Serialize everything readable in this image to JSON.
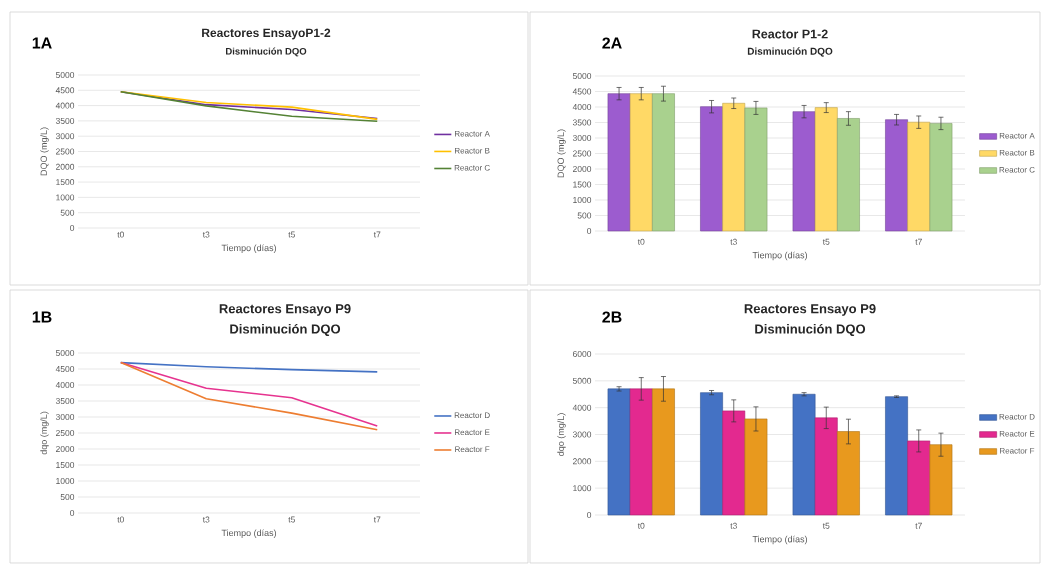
{
  "chart_data": [
    {
      "type": "line",
      "title": "Reactores EnsayoP1-2",
      "subtitle": "Disminución DQO",
      "annotations": [
        "1A"
      ],
      "xlabel": "Tiempo (días)",
      "ylabel": "DQO (mg/L)",
      "categories": [
        "t0",
        "t3",
        "t5",
        "t7"
      ],
      "ylim": [
        0,
        5000
      ],
      "yticks": [
        0,
        500,
        1000,
        1500,
        2000,
        2500,
        3000,
        3500,
        4000,
        4500,
        5000
      ],
      "grid": "y",
      "legend": "right",
      "series": [
        {
          "name": "Reactor A",
          "color": "#7030a0",
          "values": [
            4450,
            4030,
            3870,
            3580
          ]
        },
        {
          "name": "Reactor B",
          "color": "#ffc000",
          "values": [
            4450,
            4100,
            3950,
            3550
          ]
        },
        {
          "name": "Reactor C",
          "color": "#548235",
          "values": [
            4450,
            3990,
            3650,
            3490
          ]
        }
      ]
    },
    {
      "type": "bar",
      "title": "Reactor P1-2",
      "subtitle": "Disminución DQO",
      "annotations": [
        "2A"
      ],
      "xlabel": "Tiempo (días)",
      "ylabel": "DQO (mg/L)",
      "categories": [
        "t0",
        "t3",
        "t5",
        "t7"
      ],
      "ylim": [
        0,
        5000
      ],
      "yticks": [
        0,
        500,
        1000,
        1500,
        2000,
        2500,
        3000,
        3500,
        4000,
        4500,
        5000
      ],
      "grid": "y",
      "legend": "right",
      "series": [
        {
          "name": "Reactor A",
          "color": "#9c5ccf",
          "values": [
            4430,
            4010,
            3850,
            3590
          ],
          "errors": [
            200,
            200,
            200,
            170
          ]
        },
        {
          "name": "Reactor B",
          "color": "#ffd966",
          "values": [
            4430,
            4120,
            3980,
            3510
          ],
          "errors": [
            200,
            170,
            160,
            200
          ]
        },
        {
          "name": "Reactor C",
          "color": "#a9d18e",
          "values": [
            4430,
            3970,
            3630,
            3470
          ],
          "errors": [
            240,
            210,
            220,
            200
          ]
        }
      ]
    },
    {
      "type": "line",
      "title": "Reactores Ensayo P9",
      "subtitle": "Disminución DQO",
      "annotations": [
        "1B"
      ],
      "xlabel": "Tiempo (días)",
      "ylabel": "dqo (mg/L)",
      "categories": [
        "t0",
        "t3",
        "t5",
        "t7"
      ],
      "ylim": [
        0,
        5000
      ],
      "yticks": [
        0,
        500,
        1000,
        1500,
        2000,
        2500,
        3000,
        3500,
        4000,
        4500,
        5000
      ],
      "grid": "y",
      "legend": "right",
      "series": [
        {
          "name": "Reactor D",
          "color": "#4472c4",
          "values": [
            4700,
            4570,
            4480,
            4410
          ]
        },
        {
          "name": "Reactor E",
          "color": "#e6338f",
          "values": [
            4700,
            3900,
            3600,
            2720
          ]
        },
        {
          "name": "Reactor F",
          "color": "#ed7d31",
          "values": [
            4700,
            3570,
            3120,
            2600
          ]
        }
      ]
    },
    {
      "type": "bar",
      "title": "Reactores Ensayo P9",
      "subtitle": "Disminución DQO",
      "annotations": [
        "2B"
      ],
      "xlabel": "Tiempo (días)",
      "ylabel": "dqo (mg/L)",
      "categories": [
        "t0",
        "t3",
        "t5",
        "t7"
      ],
      "ylim": [
        0,
        6000
      ],
      "yticks": [
        0,
        1000,
        2000,
        3000,
        4000,
        5000,
        6000
      ],
      "grid": "y",
      "legend": "right",
      "series": [
        {
          "name": "Reactor D",
          "color": "#4472c4",
          "values": [
            4700,
            4560,
            4500,
            4410
          ],
          "errors": [
            80,
            80,
            60,
            30
          ]
        },
        {
          "name": "Reactor E",
          "color": "#e3298f",
          "values": [
            4700,
            3880,
            3620,
            2760
          ],
          "errors": [
            420,
            410,
            400,
            410
          ]
        },
        {
          "name": "Reactor F",
          "color": "#e8991e",
          "values": [
            4700,
            3580,
            3110,
            2620
          ],
          "errors": [
            460,
            450,
            460,
            430
          ]
        }
      ]
    }
  ]
}
